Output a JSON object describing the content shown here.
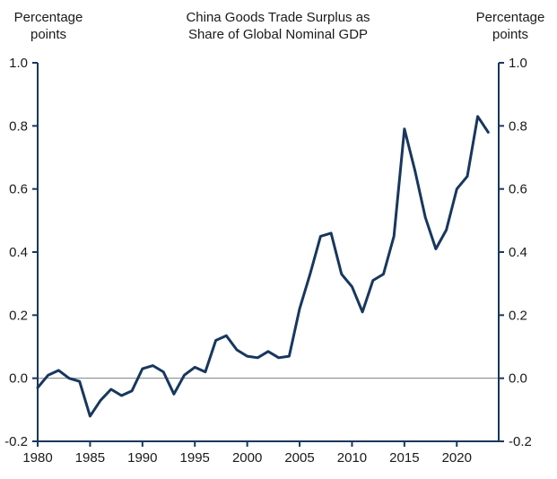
{
  "labels": {
    "left_unit_line1": "Percentage",
    "left_unit_line2": "points",
    "right_unit_line1": "Percentage",
    "right_unit_line2": "points"
  },
  "chart_data": {
    "type": "line",
    "title": "China Goods Trade Surplus as Share of Global Nominal GDP",
    "title_lines": [
      "China Goods Trade Surplus as",
      "Share of Global Nominal GDP"
    ],
    "ylabel_left": "Percentage points",
    "ylabel_right": "Percentage points",
    "xlabel": "",
    "ylim": [
      -0.2,
      1.0
    ],
    "xlim": [
      1980,
      2024
    ],
    "y_ticks": [
      "1.0",
      "0.8",
      "0.6",
      "0.4",
      "0.2",
      "0.0",
      "-0.2"
    ],
    "y_tick_values": [
      1.0,
      0.8,
      0.6,
      0.4,
      0.2,
      0.0,
      -0.2
    ],
    "x_ticks": [
      "1980",
      "1985",
      "1990",
      "1995",
      "2000",
      "2005",
      "2010",
      "2015",
      "2020"
    ],
    "x_tick_values": [
      1980,
      1985,
      1990,
      1995,
      2000,
      2005,
      2010,
      2015,
      2020
    ],
    "x": [
      1980,
      1981,
      1982,
      1983,
      1984,
      1985,
      1986,
      1987,
      1988,
      1989,
      1990,
      1991,
      1992,
      1993,
      1994,
      1995,
      1996,
      1997,
      1998,
      1999,
      2000,
      2001,
      2002,
      2003,
      2004,
      2005,
      2006,
      2007,
      2008,
      2009,
      2010,
      2011,
      2012,
      2013,
      2014,
      2015,
      2016,
      2017,
      2018,
      2019,
      2020,
      2021,
      2022,
      2023
    ],
    "values": [
      -0.03,
      0.01,
      0.025,
      0.0,
      -0.01,
      -0.12,
      -0.07,
      -0.035,
      -0.055,
      -0.04,
      0.03,
      0.04,
      0.02,
      -0.05,
      0.01,
      0.035,
      0.02,
      0.12,
      0.135,
      0.09,
      0.07,
      0.065,
      0.085,
      0.065,
      0.07,
      0.22,
      0.33,
      0.45,
      0.46,
      0.33,
      0.29,
      0.21,
      0.31,
      0.33,
      0.45,
      0.79,
      0.66,
      0.51,
      0.41,
      0.47,
      0.6,
      0.64,
      0.83,
      0.78
    ],
    "grid": "zero-line-only",
    "legend": "none",
    "line_color": "#17375E",
    "axis_color": "#17375E",
    "zero_line_color": "#808080",
    "text_color": "#1a1a1a"
  }
}
